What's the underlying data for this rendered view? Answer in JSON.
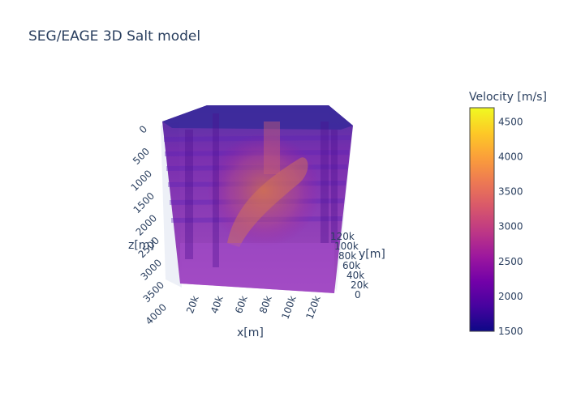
{
  "chart_data": {
    "type": "volume",
    "title": "SEG/EAGE 3D Salt model",
    "x_axis": {
      "label": "x[m]",
      "ticks": [
        "20k",
        "40k",
        "60k",
        "80k",
        "100k",
        "120k"
      ]
    },
    "y_axis": {
      "label": "y[m]",
      "ticks": [
        "0",
        "20k",
        "40k",
        "60k",
        "80k",
        "100k",
        "120k"
      ]
    },
    "z_axis": {
      "label": "z[m]",
      "ticks": [
        "0",
        "500",
        "1000",
        "1500",
        "2000",
        "2500",
        "3000",
        "3500",
        "4000"
      ]
    },
    "colorbar": {
      "title": "Velocity [m/s]",
      "range": [
        1500,
        4700
      ],
      "ticks": [
        1500,
        2000,
        2500,
        3000,
        3500,
        4000,
        4500
      ],
      "colorscale": [
        "#0d0887",
        "#46039f",
        "#7201a8",
        "#9c179e",
        "#bd3786",
        "#d8576b",
        "#ed7953",
        "#fb9f3a",
        "#fdca26",
        "#f0f921"
      ]
    }
  }
}
